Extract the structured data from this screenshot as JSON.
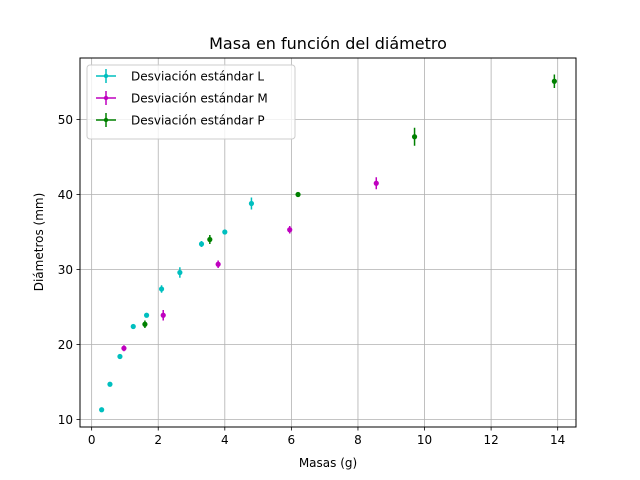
{
  "chart_data": {
    "type": "scatter",
    "title": "Masa en función del diámetro",
    "xlabel": "Masas (g)",
    "ylabel": "Diámetros (mm)",
    "xlim": [
      -0.35,
      14.55
    ],
    "ylim": [
      9.0,
      58.2
    ],
    "xticks": [
      0,
      2,
      4,
      6,
      8,
      10,
      12,
      14
    ],
    "yticks": [
      10,
      20,
      30,
      40,
      50
    ],
    "grid": true,
    "legend_position": "upper-left",
    "series": [
      {
        "name": "Desviación estándar L",
        "color": "#00bfbf",
        "x": [
          0.3,
          0.55,
          0.85,
          1.25,
          1.65,
          2.1,
          2.65,
          3.3,
          4.0,
          4.8
        ],
        "y": [
          11.3,
          14.7,
          18.4,
          22.4,
          23.9,
          27.4,
          29.6,
          33.4,
          35.0,
          38.8
        ],
        "yerr": [
          0.3,
          0.3,
          0.3,
          0.3,
          0.3,
          0.5,
          0.7,
          0.4,
          0.3,
          0.8
        ]
      },
      {
        "name": "Desviación estándar M",
        "color": "#bf00bf",
        "x": [
          0.97,
          2.15,
          3.8,
          5.95,
          8.55
        ],
        "y": [
          19.5,
          23.9,
          30.7,
          35.3,
          41.5
        ],
        "yerr": [
          0.4,
          0.7,
          0.5,
          0.5,
          0.8
        ]
      },
      {
        "name": "Desviación estándar P",
        "color": "#008000",
        "x": [
          1.6,
          3.55,
          6.2,
          9.7,
          13.9
        ],
        "y": [
          22.7,
          34.0,
          40.0,
          47.7,
          55.1
        ],
        "yerr": [
          0.5,
          0.6,
          0.3,
          1.2,
          0.9
        ]
      }
    ]
  }
}
